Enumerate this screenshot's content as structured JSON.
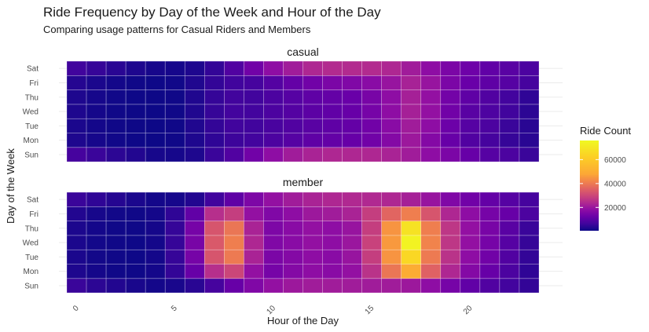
{
  "chart_data": {
    "type": "heatmap",
    "title": "Ride Frequency by Day of the Week and Hour of the Day",
    "subtitle": "Comparing usage patterns for Casual Riders and Members",
    "xlabel": "Hour of the Day",
    "ylabel": "Day of the Week",
    "x": [
      0,
      1,
      2,
      3,
      4,
      5,
      6,
      7,
      8,
      9,
      10,
      11,
      12,
      13,
      14,
      15,
      16,
      17,
      18,
      19,
      20,
      21,
      22,
      23
    ],
    "x_ticks": [
      "0",
      "5",
      "10",
      "15",
      "20"
    ],
    "y": [
      "Sun",
      "Mon",
      "Tue",
      "Wed",
      "Thu",
      "Fri",
      "Sat"
    ],
    "legend": {
      "title": "Ride Count",
      "ticks": [
        "20000",
        "40000",
        "60000"
      ],
      "position": "right",
      "range": [
        500,
        76000
      ],
      "colormap": "plasma"
    },
    "grid": true,
    "facets": [
      {
        "name": "casual",
        "rows": {
          "Sun": [
            9000,
            7000,
            5000,
            3500,
            2000,
            1800,
            3000,
            7000,
            11000,
            17000,
            23000,
            27000,
            29000,
            30000,
            30000,
            30000,
            29000,
            27000,
            23000,
            19000,
            15000,
            12000,
            10000,
            7000
          ],
          "Mon": [
            3000,
            1800,
            1100,
            700,
            500,
            900,
            3000,
            5500,
            7500,
            8500,
            10000,
            12000,
            13500,
            14500,
            15000,
            17000,
            21000,
            26000,
            21000,
            15000,
            11000,
            9000,
            6500,
            4500
          ],
          "Tue": [
            2500,
            1500,
            900,
            600,
            500,
            1000,
            3200,
            6000,
            8000,
            8000,
            9500,
            11000,
            12500,
            13500,
            14500,
            17000,
            22000,
            27000,
            23000,
            16000,
            12000,
            10000,
            7000,
            4500
          ],
          "Wed": [
            3000,
            1600,
            1000,
            600,
            500,
            1000,
            3300,
            6500,
            8500,
            8500,
            10000,
            11500,
            13000,
            14000,
            15000,
            18000,
            23000,
            28000,
            24000,
            17000,
            12500,
            10500,
            8000,
            5000
          ],
          "Thu": [
            3000,
            1800,
            1100,
            700,
            600,
            1000,
            3300,
            6300,
            8300,
            8300,
            10000,
            12000,
            13500,
            14500,
            15500,
            18500,
            23000,
            28000,
            24000,
            17500,
            13500,
            11000,
            8500,
            5500
          ],
          "Fri": [
            4000,
            2500,
            1500,
            900,
            700,
            1100,
            3200,
            6000,
            8000,
            9000,
            11500,
            14500,
            17000,
            19000,
            20000,
            22000,
            25000,
            28500,
            25000,
            19000,
            15500,
            13500,
            12000,
            9000
          ],
          "Sat": [
            8000,
            6500,
            4500,
            3000,
            2000,
            1800,
            3000,
            6000,
            11000,
            17000,
            23000,
            27000,
            30000,
            31000,
            31000,
            31000,
            30000,
            27000,
            23000,
            19000,
            16500,
            14000,
            12500,
            10000
          ]
        }
      },
      {
        "name": "member",
        "rows": {
          "Sun": [
            7000,
            5000,
            3500,
            2200,
            1500,
            2200,
            4500,
            9000,
            15000,
            20000,
            24000,
            26000,
            27000,
            27000,
            27000,
            27000,
            27000,
            26000,
            23000,
            18000,
            14000,
            11000,
            8500,
            6000
          ],
          "Mon": [
            3000,
            1700,
            1000,
            800,
            1500,
            6000,
            15000,
            32000,
            38000,
            24000,
            18000,
            21000,
            23000,
            22000,
            24000,
            33000,
            50000,
            62000,
            45000,
            30000,
            21000,
            15000,
            10000,
            5500
          ],
          "Tue": [
            2500,
            1300,
            900,
            700,
            1500,
            6500,
            18000,
            42000,
            51000,
            29000,
            19000,
            21000,
            23000,
            22000,
            25000,
            36000,
            57000,
            70000,
            51000,
            33000,
            23000,
            17000,
            11000,
            6000
          ],
          "Wed": [
            2500,
            1400,
            900,
            700,
            1500,
            6500,
            18500,
            43000,
            52000,
            30000,
            20000,
            22000,
            24000,
            23000,
            25500,
            37000,
            58000,
            75000,
            53000,
            34000,
            24000,
            18000,
            12000,
            6500
          ],
          "Thu": [
            2700,
            1500,
            1000,
            800,
            1600,
            6300,
            18000,
            42000,
            50000,
            29000,
            19500,
            22000,
            24000,
            23000,
            25000,
            36000,
            57000,
            72000,
            52000,
            34000,
            24000,
            18500,
            12500,
            7000
          ],
          "Fri": [
            3500,
            2000,
            1200,
            900,
            1500,
            5500,
            14000,
            32000,
            36000,
            24000,
            20000,
            23000,
            26000,
            27000,
            29000,
            36000,
            46000,
            52000,
            42000,
            30000,
            23000,
            18000,
            15000,
            10000
          ],
          "Sat": [
            7000,
            5500,
            4000,
            2500,
            1500,
            1800,
            3500,
            8000,
            13500,
            19500,
            24000,
            27000,
            29000,
            30000,
            30500,
            30500,
            30000,
            28000,
            25000,
            20000,
            17000,
            14500,
            12000,
            9000
          ]
        }
      }
    ]
  }
}
